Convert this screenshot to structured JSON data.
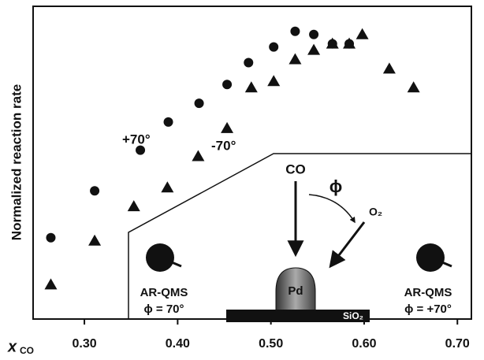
{
  "chart_data": {
    "type": "scatter",
    "y_label": "Normalized reaction rate",
    "x_label": "x",
    "x_label_sub": "CO",
    "xlim": [
      0.245,
      0.715
    ],
    "ylim": [
      0,
      1
    ],
    "xticks": [
      {
        "value": 0.3,
        "label": "0.30"
      },
      {
        "value": 0.4,
        "label": "0.40"
      },
      {
        "value": 0.5,
        "label": "0.50"
      },
      {
        "value": 0.6,
        "label": "0.60"
      },
      {
        "value": 0.7,
        "label": "0.70"
      }
    ],
    "series": [
      {
        "name": "+70°",
        "marker": "circle",
        "color": "#111111",
        "x": [
          0.264,
          0.311,
          0.36,
          0.39,
          0.423,
          0.453,
          0.476,
          0.503,
          0.526,
          0.546,
          0.566,
          0.584
        ],
        "values": [
          0.26,
          0.41,
          0.54,
          0.63,
          0.69,
          0.75,
          0.82,
          0.87,
          0.92,
          0.91,
          0.88,
          0.88
        ]
      },
      {
        "name": "-70°",
        "marker": "triangle",
        "color": "#111111",
        "x": [
          0.264,
          0.311,
          0.353,
          0.389,
          0.422,
          0.453,
          0.479,
          0.503,
          0.526,
          0.546,
          0.566,
          0.584,
          0.598,
          0.627,
          0.653
        ],
        "values": [
          0.11,
          0.25,
          0.36,
          0.42,
          0.52,
          0.61,
          0.74,
          0.76,
          0.83,
          0.86,
          0.88,
          0.88,
          0.91,
          0.8,
          0.74
        ]
      }
    ],
    "inset": {
      "co": "CO",
      "phi": "ϕ",
      "o2": "O₂",
      "pd": "Pd",
      "sio2": "SiO₂",
      "left_detector": "AR-QMS",
      "left_angle": "ϕ = 70°",
      "right_detector": "AR-QMS",
      "right_angle": "ϕ = +70°"
    }
  }
}
